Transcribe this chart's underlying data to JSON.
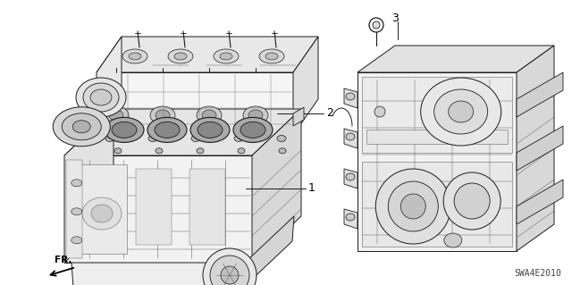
{
  "background_color": "#ffffff",
  "line_color": "#1a1a1a",
  "gray_color": "#666666",
  "light_gray": "#aaaaaa",
  "diagram_code": "SWA4E2010",
  "label_1": "1",
  "label_2": "2",
  "label_3": "3",
  "fr_label": "FR.",
  "lw_main": 0.7,
  "lw_thin": 0.4,
  "lw_thick": 1.1
}
